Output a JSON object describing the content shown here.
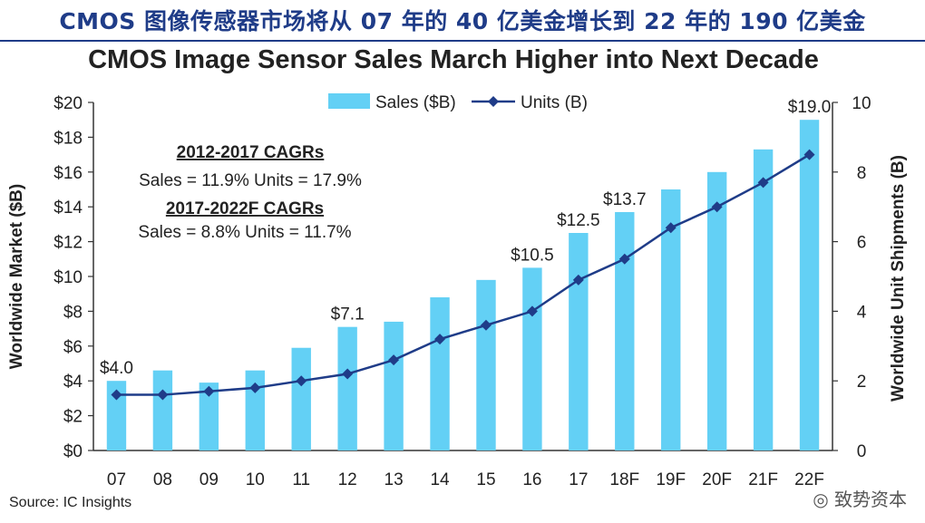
{
  "slide_title": "CMOS 图像传感器市场将从 07 年的 40 亿美金增长到 22 年的 190 亿美金",
  "source": "Source: IC Insights",
  "watermark": "◎ 致势资本",
  "colors": {
    "bar": "#63d0f5",
    "line": "#1f3c88",
    "title": "#1f3c88"
  },
  "chart_data": {
    "type": "bar+line",
    "title": "CMOS Image Sensor Sales March Higher into Next Decade",
    "categories": [
      "07",
      "08",
      "09",
      "10",
      "11",
      "12",
      "13",
      "14",
      "15",
      "16",
      "17",
      "18F",
      "19F",
      "20F",
      "21F",
      "22F"
    ],
    "series": [
      {
        "name": "Sales ($B)",
        "type": "bar",
        "axis": "left",
        "values": [
          4.0,
          4.6,
          3.9,
          4.6,
          5.9,
          7.1,
          7.4,
          8.8,
          9.8,
          10.5,
          12.5,
          13.7,
          15.0,
          16.0,
          17.3,
          19.0
        ]
      },
      {
        "name": "Units (B)",
        "type": "line",
        "axis": "right",
        "values": [
          1.6,
          1.6,
          1.7,
          1.8,
          2.0,
          2.2,
          2.6,
          3.2,
          3.6,
          4.0,
          4.9,
          5.5,
          6.4,
          7.0,
          7.7,
          8.5
        ]
      }
    ],
    "data_labels": [
      {
        "category": "07",
        "text": "$4.0"
      },
      {
        "category": "12",
        "text": "$7.1"
      },
      {
        "category": "16",
        "text": "$10.5"
      },
      {
        "category": "17",
        "text": "$12.5"
      },
      {
        "category": "18F",
        "text": "$13.7"
      },
      {
        "category": "22F",
        "text": "$19.0"
      }
    ],
    "y_left": {
      "label": "Worldwide Market ($B)",
      "min": 0,
      "max": 20,
      "step": 2,
      "tick_labels": [
        "$0",
        "$2",
        "$4",
        "$6",
        "$8",
        "$10",
        "$12",
        "$14",
        "$16",
        "$18",
        "$20"
      ]
    },
    "y_right": {
      "label": "Worldwide Unit Shipments (B)",
      "min": 0,
      "max": 10,
      "step": 2,
      "tick_labels": [
        "0",
        "2",
        "4",
        "6",
        "8",
        "10"
      ]
    },
    "legend": [
      "Sales ($B)",
      "Units (B)"
    ],
    "annotations": {
      "cagr1_title": "2012-2017 CAGRs",
      "cagr1_text": "Sales = 11.9%  Units = 17.9%",
      "cagr2_title": "2017-2022F CAGRs",
      "cagr2_text": "Sales = 8.8%  Units = 11.7%"
    },
    "grid": false,
    "legend_position": "top"
  }
}
